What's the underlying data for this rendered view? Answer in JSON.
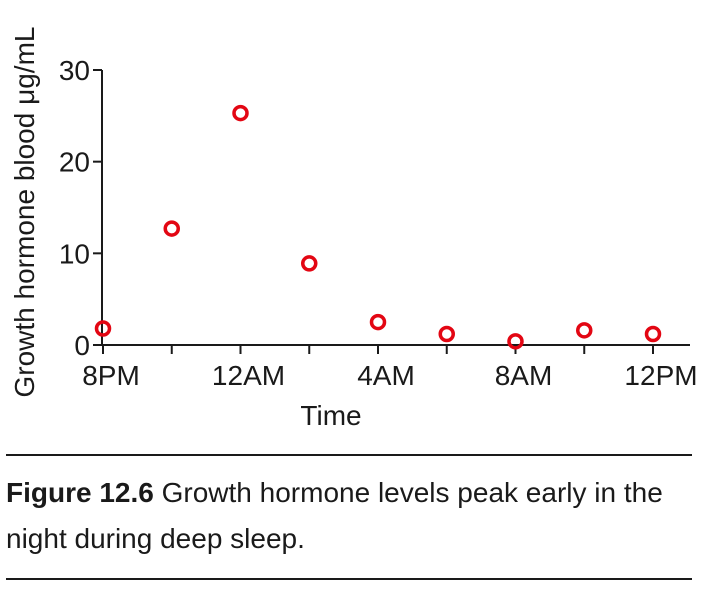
{
  "chart_data": {
    "type": "scatter",
    "xlabel": "Time",
    "ylabel": "Growth hormone blood μg/mL",
    "ylim": [
      0,
      30
    ],
    "yticks": [
      0,
      10,
      20,
      30
    ],
    "xticks": [
      "8PM",
      "",
      "12AM",
      "",
      "4AM",
      "",
      "8AM",
      "",
      "12PM"
    ],
    "points": [
      {
        "x": "8PM",
        "y": 1.8
      },
      {
        "x": "10PM",
        "y": 12.7
      },
      {
        "x": "12AM",
        "y": 25.3
      },
      {
        "x": "2AM",
        "y": 8.9
      },
      {
        "x": "4AM",
        "y": 2.5
      },
      {
        "x": "6AM",
        "y": 1.2
      },
      {
        "x": "8AM",
        "y": 0.4
      },
      {
        "x": "10AM",
        "y": 1.6
      },
      {
        "x": "12PM",
        "y": 1.2
      }
    ],
    "marker_color": "#e30613",
    "grid": false
  },
  "caption": {
    "label": "Figure 12.6",
    "text": " Growth hormone levels peak early in the night during deep sleep."
  }
}
